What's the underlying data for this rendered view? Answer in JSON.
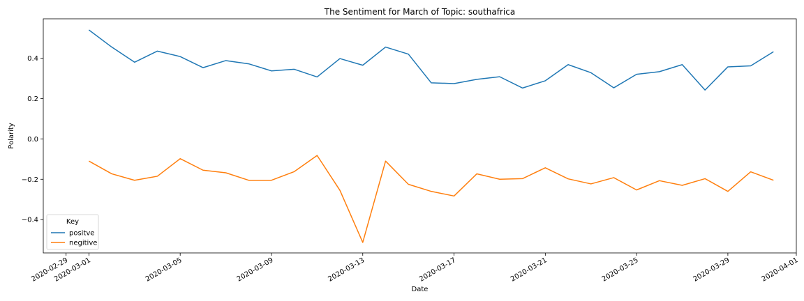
{
  "chart_data": {
    "type": "line",
    "title": "The Sentiment for March of Topic: southafrica",
    "xlabel": "Date",
    "ylabel": "Polarity",
    "x": [
      "2020-03-01",
      "2020-03-02",
      "2020-03-03",
      "2020-03-04",
      "2020-03-05",
      "2020-03-06",
      "2020-03-07",
      "2020-03-08",
      "2020-03-09",
      "2020-03-10",
      "2020-03-11",
      "2020-03-12",
      "2020-03-13",
      "2020-03-14",
      "2020-03-15",
      "2020-03-16",
      "2020-03-17",
      "2020-03-18",
      "2020-03-19",
      "2020-03-20",
      "2020-03-21",
      "2020-03-22",
      "2020-03-23",
      "2020-03-24",
      "2020-03-25",
      "2020-03-26",
      "2020-03-27",
      "2020-03-28",
      "2020-03-29",
      "2020-03-30",
      "2020-03-31"
    ],
    "series": [
      {
        "name": "positve",
        "color": "#1f77b4",
        "values": [
          0.54,
          0.455,
          0.38,
          0.435,
          0.408,
          0.353,
          0.388,
          0.372,
          0.337,
          0.345,
          0.307,
          0.398,
          0.365,
          0.455,
          0.42,
          0.278,
          0.274,
          0.295,
          0.308,
          0.252,
          0.288,
          0.368,
          0.328,
          0.253,
          0.32,
          0.333,
          0.368,
          0.242,
          0.357,
          0.362,
          0.432
        ]
      },
      {
        "name": "negitive",
        "color": "#ff7f0e",
        "values": [
          -0.11,
          -0.173,
          -0.205,
          -0.185,
          -0.098,
          -0.155,
          -0.168,
          -0.205,
          -0.205,
          -0.162,
          -0.082,
          -0.255,
          -0.513,
          -0.11,
          -0.225,
          -0.26,
          -0.283,
          -0.173,
          -0.2,
          -0.197,
          -0.143,
          -0.198,
          -0.223,
          -0.192,
          -0.253,
          -0.207,
          -0.23,
          -0.197,
          -0.26,
          -0.163,
          -0.205
        ]
      }
    ],
    "x_ticks": [
      "2020-02-29",
      "2020-03-01",
      "2020-03-05",
      "2020-03-09",
      "2020-03-13",
      "2020-03-17",
      "2020-03-21",
      "2020-03-25",
      "2020-03-29",
      "2020-04-01"
    ],
    "y_ticks": [
      -0.4,
      -0.2,
      0.0,
      0.2,
      0.4
    ],
    "y_tick_labels": [
      "−0.4",
      "−0.2",
      "0.0",
      "0.2",
      "0.4"
    ],
    "xlim": [
      "2020-02-28",
      "2020-04-01"
    ],
    "ylim": [
      -0.565,
      0.595
    ],
    "legend": {
      "title": "Key",
      "placement": "lower-left"
    },
    "grid": false
  }
}
